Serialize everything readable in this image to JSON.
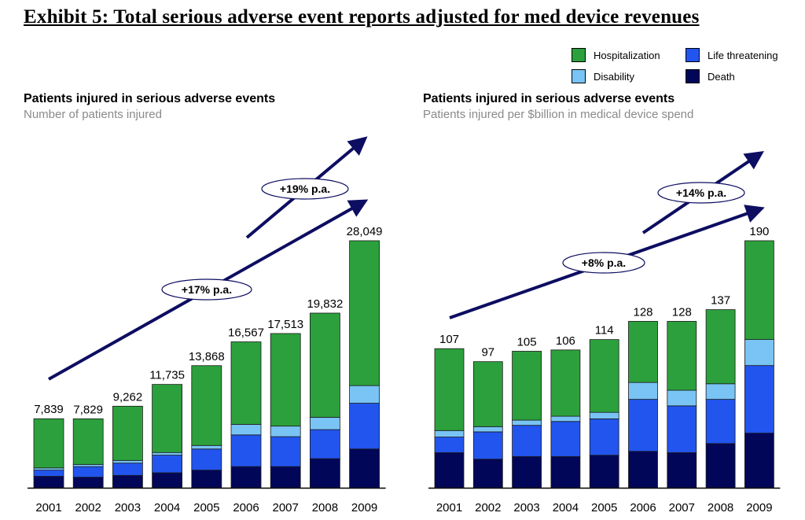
{
  "exhibit_title": "Exhibit 5: Total serious adverse event reports adjusted for med device revenues",
  "legend": [
    {
      "name": "Hospitalization",
      "color": "#2ca03c"
    },
    {
      "name": "Life threatening",
      "color": "#2255ee"
    },
    {
      "name": "Disability",
      "color": "#79c4f4"
    },
    {
      "name": "Death",
      "color": "#020659"
    }
  ],
  "chart_data": [
    {
      "type": "bar",
      "stacked": true,
      "title": "Patients injured in serious adverse events",
      "subtitle": "Number of patients injured",
      "categories": [
        "2001",
        "2002",
        "2003",
        "2004",
        "2005",
        "2006",
        "2007",
        "2008",
        "2009"
      ],
      "totals": [
        7839,
        7829,
        9262,
        11735,
        13868,
        16567,
        17513,
        19832,
        28049
      ],
      "total_labels": [
        "7,839",
        "7,829",
        "9,262",
        "11,735",
        "13,868",
        "16,567",
        "17,513",
        "19,832",
        "28,049"
      ],
      "series": [
        {
          "name": "Death",
          "values": [
            1300,
            1200,
            1400,
            1700,
            2000,
            2400,
            2400,
            3300,
            4400
          ]
        },
        {
          "name": "Life threatening",
          "values": [
            700,
            1200,
            1400,
            2000,
            2400,
            3600,
            3400,
            3300,
            5200
          ]
        },
        {
          "name": "Disability",
          "values": [
            250,
            250,
            300,
            300,
            400,
            1200,
            1200,
            1400,
            2000
          ]
        },
        {
          "name": "Hospitalization",
          "values": [
            5589,
            5179,
            6162,
            7735,
            9068,
            9367,
            10513,
            11832,
            16449
          ]
        }
      ],
      "ylim": [
        0,
        28049
      ],
      "trends": [
        {
          "label": "+17% p.a."
        },
        {
          "label": "+19% p.a."
        }
      ]
    },
    {
      "type": "bar",
      "stacked": true,
      "title": "Patients injured in serious adverse events",
      "subtitle": "Patients injured per $billion in medical device spend",
      "categories": [
        "2001",
        "2002",
        "2003",
        "2004",
        "2005",
        "2006",
        "2007",
        "2008",
        "2009"
      ],
      "totals": [
        107,
        97,
        105,
        106,
        114,
        128,
        128,
        137,
        190
      ],
      "total_labels": [
        "107",
        "97",
        "105",
        "106",
        "114",
        "128",
        "128",
        "137",
        "190"
      ],
      "series": [
        {
          "name": "Death",
          "values": [
            27,
            22,
            24,
            24,
            25,
            28,
            27,
            34,
            42
          ]
        },
        {
          "name": "Life threatening",
          "values": [
            12,
            21,
            24,
            27,
            28,
            40,
            36,
            34,
            52
          ]
        },
        {
          "name": "Disability",
          "values": [
            5,
            4,
            4,
            4,
            5,
            13,
            12,
            12,
            20
          ]
        },
        {
          "name": "Hospitalization",
          "values": [
            63,
            50,
            53,
            51,
            56,
            47,
            53,
            57,
            76
          ]
        }
      ],
      "ylim": [
        0,
        190
      ],
      "trends": [
        {
          "label": "+8% p.a."
        },
        {
          "label": "+14% p.a."
        }
      ]
    }
  ]
}
